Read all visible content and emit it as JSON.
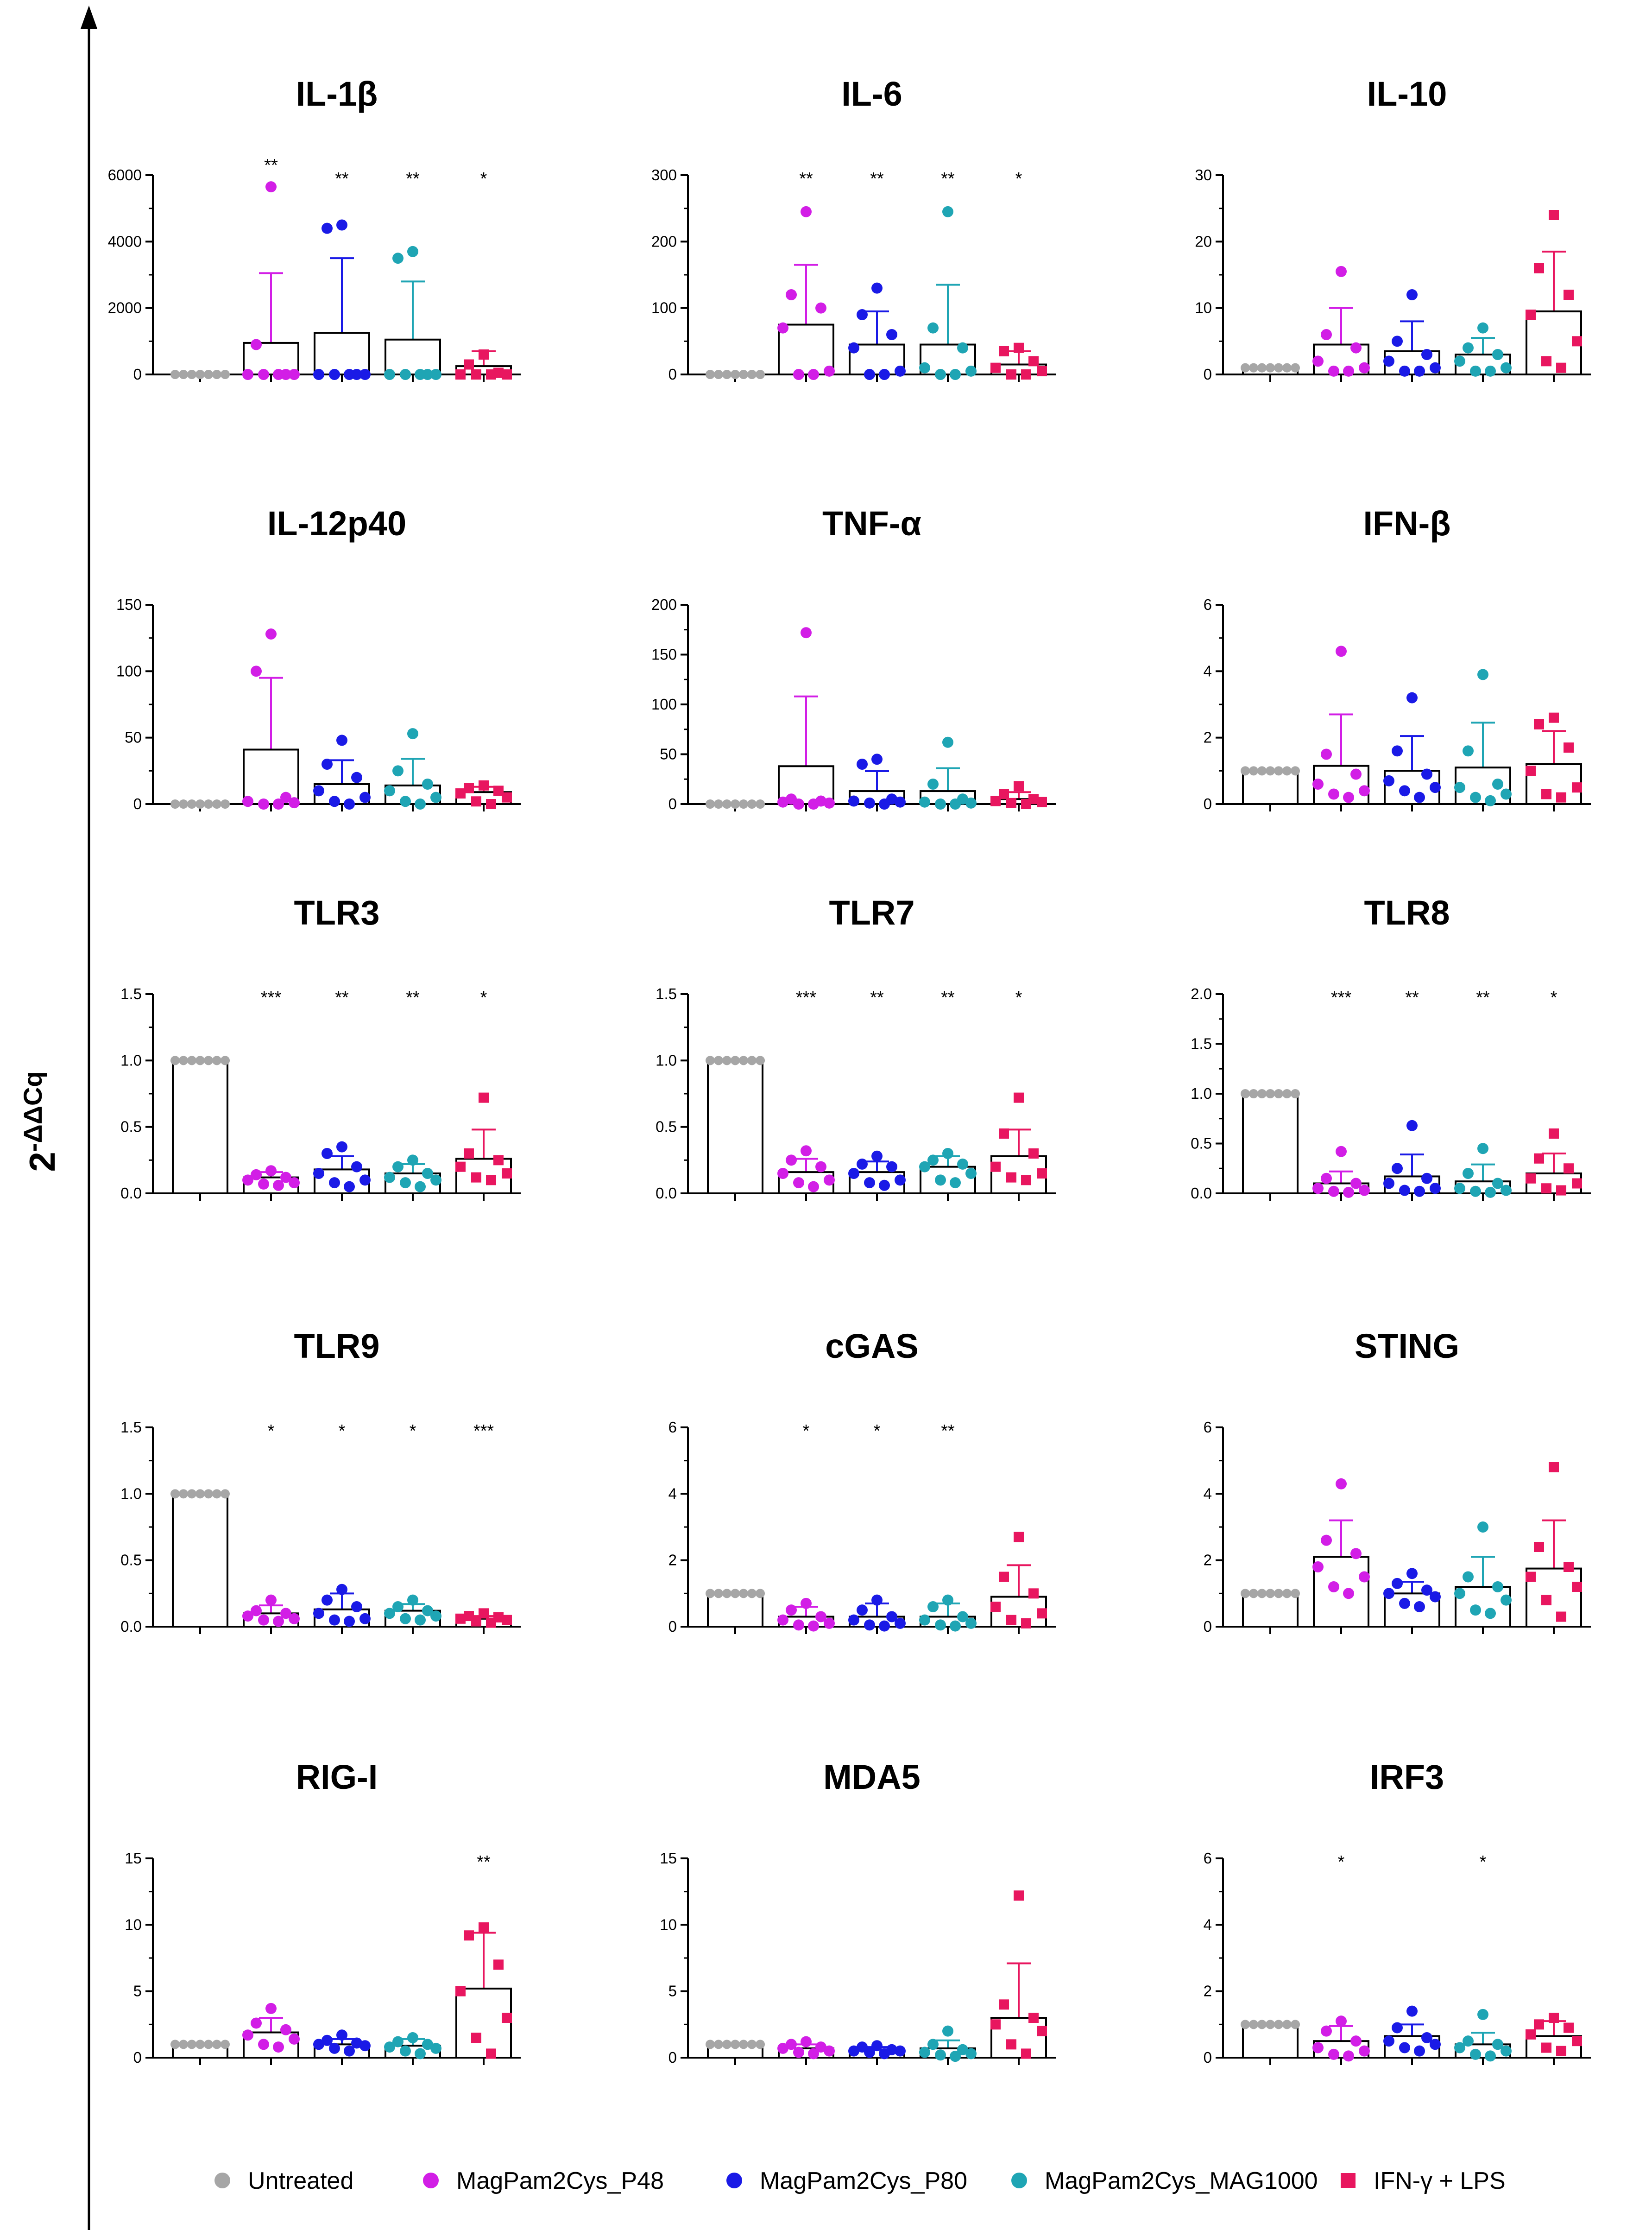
{
  "y_axis_label": {
    "base": "2",
    "exponent": "-ΔΔCq"
  },
  "colors": {
    "Untreated": "#a6a6a6",
    "MagPam2Cys_P48": "#d21ee6",
    "MagPam2Cys_P80": "#1a1ae6",
    "MagPam2Cys_MAG1000": "#1fa5b4",
    "IFN-γ + LPS": "#e8165f"
  },
  "legend": [
    {
      "label": "Untreated",
      "color": "#a6a6a6",
      "marker": "circle"
    },
    {
      "label": "MagPam2Cys_P48",
      "color": "#d21ee6",
      "marker": "circle"
    },
    {
      "label": "MagPam2Cys_P80",
      "color": "#1a1ae6",
      "marker": "circle"
    },
    {
      "label": "MagPam2Cys_MAG1000",
      "color": "#1fa5b4",
      "marker": "circle"
    },
    {
      "label": "IFN-γ + LPS",
      "color": "#e8165f",
      "marker": "square"
    }
  ],
  "chart_data": [
    {
      "type": "bar",
      "title": "IL-1β",
      "ylim": [
        0,
        6000
      ],
      "yticks": [
        "0",
        "2000",
        "4000",
        "6000"
      ],
      "categories": [
        "Untreated",
        "MagPam2Cys_P48",
        "MagPam2Cys_P80",
        "MagPam2Cys_MAG1000",
        "IFN-γ + LPS"
      ],
      "means": [
        0,
        950,
        1250,
        1050,
        250
      ],
      "sd": [
        0,
        2100,
        2250,
        1750,
        450
      ],
      "points": [
        [
          0,
          0,
          0,
          0,
          0,
          0,
          0
        ],
        [
          5650,
          900,
          0,
          0,
          0,
          0,
          0
        ],
        [
          4500,
          4400,
          0,
          0,
          0,
          0,
          0
        ],
        [
          3700,
          3500,
          0,
          0,
          0,
          0,
          0
        ],
        [
          600,
          300,
          50,
          0,
          0,
          0,
          0
        ]
      ],
      "significance": [
        "",
        "**",
        "**",
        "**",
        "*"
      ]
    },
    {
      "type": "bar",
      "title": "IL-6",
      "ylim": [
        0,
        300
      ],
      "yticks": [
        "0",
        "100",
        "200",
        "300"
      ],
      "categories": [
        "Untreated",
        "MagPam2Cys_P48",
        "MagPam2Cys_P80",
        "MagPam2Cys_MAG1000",
        "IFN-γ + LPS"
      ],
      "means": [
        0,
        75,
        45,
        45,
        15
      ],
      "sd": [
        0,
        90,
        50,
        90,
        20
      ],
      "points": [
        [
          0,
          0,
          0,
          0,
          0,
          0,
          0
        ],
        [
          245,
          120,
          100,
          70,
          5,
          0,
          0
        ],
        [
          130,
          90,
          60,
          40,
          5,
          0,
          0
        ],
        [
          245,
          70,
          40,
          10,
          5,
          0,
          0
        ],
        [
          40,
          35,
          20,
          10,
          5,
          0,
          0
        ]
      ],
      "significance": [
        "",
        "**",
        "**",
        "**",
        "*"
      ]
    },
    {
      "type": "bar",
      "title": "IL-10",
      "ylim": [
        0,
        30
      ],
      "yticks": [
        "0",
        "10",
        "20",
        "30"
      ],
      "categories": [
        "Untreated",
        "MagPam2Cys_P48",
        "MagPam2Cys_P80",
        "MagPam2Cys_MAG1000",
        "IFN-γ + LPS"
      ],
      "means": [
        1,
        4.5,
        3.5,
        3,
        9.5
      ],
      "sd": [
        0,
        5.5,
        4.5,
        2.5,
        9
      ],
      "points": [
        [
          1,
          1,
          1,
          1,
          1,
          1,
          1
        ],
        [
          15.5,
          6,
          4,
          2,
          1,
          0.5,
          0.5
        ],
        [
          12,
          5,
          3,
          2,
          1,
          0.5,
          0.5
        ],
        [
          7,
          4,
          3,
          2,
          1,
          0.5,
          0.5
        ],
        [
          24,
          16,
          12,
          9,
          5,
          2,
          1
        ]
      ],
      "significance": [
        "",
        "",
        "",
        "",
        ""
      ]
    },
    {
      "type": "bar",
      "title": "IL-12p40",
      "ylim": [
        0,
        150
      ],
      "yticks": [
        "0",
        "50",
        "100",
        "150"
      ],
      "categories": [
        "Untreated",
        "MagPam2Cys_P48",
        "MagPam2Cys_P80",
        "MagPam2Cys_MAG1000",
        "IFN-γ + LPS"
      ],
      "means": [
        0,
        41,
        15,
        14,
        9
      ],
      "sd": [
        0,
        54,
        18,
        20,
        4
      ],
      "points": [
        [
          0,
          0,
          0,
          0,
          0,
          0,
          0
        ],
        [
          128,
          100,
          5,
          2,
          1,
          0,
          0
        ],
        [
          48,
          30,
          20,
          10,
          5,
          2,
          0
        ],
        [
          53,
          25,
          15,
          10,
          5,
          2,
          0
        ],
        [
          14,
          12,
          10,
          8,
          5,
          2,
          0
        ]
      ],
      "significance": [
        "",
        "",
        "",
        "",
        ""
      ]
    },
    {
      "type": "bar",
      "title": "TNF-α",
      "ylim": [
        0,
        200
      ],
      "yticks": [
        "0",
        "50",
        "100",
        "150",
        "200"
      ],
      "categories": [
        "Untreated",
        "MagPam2Cys_P48",
        "MagPam2Cys_P80",
        "MagPam2Cys_MAG1000",
        "IFN-γ + LPS"
      ],
      "means": [
        0,
        38,
        13,
        13,
        5
      ],
      "sd": [
        0,
        70,
        20,
        23,
        7
      ],
      "points": [
        [
          0,
          0,
          0,
          0,
          0,
          0,
          0
        ],
        [
          172,
          5,
          3,
          2,
          1,
          0,
          0
        ],
        [
          45,
          40,
          5,
          3,
          2,
          1,
          0
        ],
        [
          62,
          20,
          5,
          2,
          1,
          0,
          0
        ],
        [
          18,
          10,
          5,
          3,
          2,
          1,
          0
        ]
      ],
      "significance": [
        "",
        "",
        "",
        "",
        ""
      ]
    },
    {
      "type": "bar",
      "title": "IFN-β",
      "ylim": [
        0,
        6
      ],
      "yticks": [
        "0",
        "2",
        "4",
        "6"
      ],
      "categories": [
        "Untreated",
        "MagPam2Cys_P48",
        "MagPam2Cys_P80",
        "MagPam2Cys_MAG1000",
        "IFN-γ + LPS"
      ],
      "means": [
        1,
        1.15,
        1.0,
        1.1,
        1.2
      ],
      "sd": [
        0,
        1.55,
        1.05,
        1.35,
        1.0
      ],
      "points": [
        [
          1,
          1,
          1,
          1,
          1,
          1,
          1
        ],
        [
          4.6,
          1.5,
          0.9,
          0.6,
          0.4,
          0.3,
          0.2
        ],
        [
          3.2,
          1.6,
          0.9,
          0.7,
          0.5,
          0.4,
          0.2
        ],
        [
          3.9,
          1.6,
          0.6,
          0.5,
          0.3,
          0.2,
          0.1
        ],
        [
          2.6,
          2.4,
          1.7,
          1.0,
          0.5,
          0.3,
          0.2
        ]
      ],
      "significance": [
        "",
        "",
        "",
        "",
        ""
      ]
    },
    {
      "type": "bar",
      "title": "TLR3",
      "ylim": [
        0,
        1.5
      ],
      "yticks": [
        "0.0",
        "0.5",
        "1.0",
        "1.5"
      ],
      "categories": [
        "Untreated",
        "MagPam2Cys_P48",
        "MagPam2Cys_P80",
        "MagPam2Cys_MAG1000",
        "IFN-γ + LPS"
      ],
      "means": [
        1.0,
        0.12,
        0.18,
        0.15,
        0.26
      ],
      "sd": [
        0,
        0.04,
        0.1,
        0.07,
        0.22
      ],
      "points": [
        [
          1,
          1,
          1,
          1,
          1,
          1,
          1
        ],
        [
          0.17,
          0.14,
          0.12,
          0.1,
          0.08,
          0.07,
          0.06
        ],
        [
          0.35,
          0.3,
          0.2,
          0.15,
          0.1,
          0.08,
          0.05
        ],
        [
          0.25,
          0.2,
          0.15,
          0.12,
          0.1,
          0.08,
          0.05
        ],
        [
          0.72,
          0.3,
          0.25,
          0.2,
          0.15,
          0.12,
          0.1
        ]
      ],
      "significance": [
        "",
        "***",
        "**",
        "**",
        "*"
      ]
    },
    {
      "type": "bar",
      "title": "TLR7",
      "ylim": [
        0,
        1.5
      ],
      "yticks": [
        "0.0",
        "0.5",
        "1.0",
        "1.5"
      ],
      "categories": [
        "Untreated",
        "MagPam2Cys_P48",
        "MagPam2Cys_P80",
        "MagPam2Cys_MAG1000",
        "IFN-γ + LPS"
      ],
      "means": [
        1.0,
        0.16,
        0.16,
        0.2,
        0.28
      ],
      "sd": [
        0,
        0.1,
        0.08,
        0.08,
        0.2
      ],
      "points": [
        [
          1,
          1,
          1,
          1,
          1,
          1,
          1
        ],
        [
          0.32,
          0.25,
          0.2,
          0.15,
          0.1,
          0.08,
          0.05
        ],
        [
          0.28,
          0.22,
          0.2,
          0.15,
          0.1,
          0.08,
          0.06
        ],
        [
          0.3,
          0.25,
          0.22,
          0.2,
          0.15,
          0.1,
          0.08
        ],
        [
          0.72,
          0.45,
          0.3,
          0.2,
          0.15,
          0.12,
          0.1
        ]
      ],
      "significance": [
        "",
        "***",
        "**",
        "**",
        "*"
      ]
    },
    {
      "type": "bar",
      "title": "TLR8",
      "ylim": [
        0,
        2.0
      ],
      "yticks": [
        "0.0",
        "0.5",
        "1.0",
        "1.5",
        "2.0"
      ],
      "categories": [
        "Untreated",
        "MagPam2Cys_P48",
        "MagPam2Cys_P80",
        "MagPam2Cys_MAG1000",
        "IFN-γ + LPS"
      ],
      "means": [
        1.0,
        0.1,
        0.17,
        0.12,
        0.2
      ],
      "sd": [
        0,
        0.12,
        0.22,
        0.17,
        0.2
      ],
      "points": [
        [
          1,
          1,
          1,
          1,
          1,
          1,
          1
        ],
        [
          0.42,
          0.15,
          0.1,
          0.05,
          0.03,
          0.02,
          0.01
        ],
        [
          0.68,
          0.25,
          0.15,
          0.1,
          0.05,
          0.03,
          0.02
        ],
        [
          0.45,
          0.2,
          0.1,
          0.05,
          0.03,
          0.02,
          0.01
        ],
        [
          0.6,
          0.35,
          0.25,
          0.15,
          0.1,
          0.05,
          0.03
        ]
      ],
      "significance": [
        "",
        "***",
        "**",
        "**",
        "*"
      ]
    },
    {
      "type": "bar",
      "title": "TLR9",
      "ylim": [
        0,
        1.5
      ],
      "yticks": [
        "0.0",
        "0.5",
        "1.0",
        "1.5"
      ],
      "categories": [
        "Untreated",
        "MagPam2Cys_P48",
        "MagPam2Cys_P80",
        "MagPam2Cys_MAG1000",
        "IFN-γ + LPS"
      ],
      "means": [
        1.0,
        0.1,
        0.13,
        0.12,
        0.06
      ],
      "sd": [
        0,
        0.06,
        0.12,
        0.05,
        0.02
      ],
      "points": [
        [
          1,
          1,
          1,
          1,
          1,
          1,
          1
        ],
        [
          0.2,
          0.12,
          0.1,
          0.08,
          0.06,
          0.05,
          0.04
        ],
        [
          0.28,
          0.2,
          0.15,
          0.1,
          0.06,
          0.05,
          0.04
        ],
        [
          0.2,
          0.15,
          0.12,
          0.1,
          0.08,
          0.06,
          0.05
        ],
        [
          0.1,
          0.08,
          0.07,
          0.06,
          0.05,
          0.04,
          0.03
        ]
      ],
      "significance": [
        "",
        "*",
        "*",
        "*",
        "***"
      ]
    },
    {
      "type": "bar",
      "title": "cGAS",
      "ylim": [
        0,
        6
      ],
      "yticks": [
        "0",
        "2",
        "4",
        "6"
      ],
      "categories": [
        "Untreated",
        "MagPam2Cys_P48",
        "MagPam2Cys_P80",
        "MagPam2Cys_MAG1000",
        "IFN-γ + LPS"
      ],
      "means": [
        1,
        0.3,
        0.3,
        0.3,
        0.9
      ],
      "sd": [
        0,
        0.3,
        0.4,
        0.4,
        0.95
      ],
      "points": [
        [
          1,
          1,
          1,
          1,
          1,
          1,
          1
        ],
        [
          0.7,
          0.5,
          0.3,
          0.2,
          0.1,
          0.05,
          0.02
        ],
        [
          0.8,
          0.5,
          0.3,
          0.2,
          0.1,
          0.05,
          0.02
        ],
        [
          0.8,
          0.6,
          0.3,
          0.2,
          0.1,
          0.05,
          0.02
        ],
        [
          2.7,
          1.5,
          1.0,
          0.6,
          0.4,
          0.2,
          0.1
        ]
      ],
      "significance": [
        "",
        "*",
        "*",
        "**",
        ""
      ]
    },
    {
      "type": "bar",
      "title": "STING",
      "ylim": [
        0,
        6
      ],
      "yticks": [
        "0",
        "2",
        "4",
        "6"
      ],
      "categories": [
        "Untreated",
        "MagPam2Cys_P48",
        "MagPam2Cys_P80",
        "MagPam2Cys_MAG1000",
        "IFN-γ + LPS"
      ],
      "means": [
        1,
        2.1,
        1.0,
        1.2,
        1.75
      ],
      "sd": [
        0,
        1.1,
        0.35,
        0.9,
        1.45
      ],
      "points": [
        [
          1,
          1,
          1,
          1,
          1,
          1,
          1
        ],
        [
          4.3,
          2.6,
          2.2,
          1.8,
          1.5,
          1.2,
          1.0
        ],
        [
          1.6,
          1.3,
          1.1,
          1.0,
          0.9,
          0.7,
          0.6
        ],
        [
          3.0,
          1.5,
          1.2,
          1.0,
          0.8,
          0.5,
          0.4
        ],
        [
          4.8,
          2.4,
          1.8,
          1.5,
          1.2,
          0.8,
          0.3
        ]
      ],
      "significance": [
        "",
        "",
        "",
        "",
        ""
      ]
    },
    {
      "type": "bar",
      "title": "RIG-I",
      "ylim": [
        0,
        15
      ],
      "yticks": [
        "0",
        "5",
        "10",
        "15"
      ],
      "categories": [
        "Untreated",
        "MagPam2Cys_P48",
        "MagPam2Cys_P80",
        "MagPam2Cys_MAG1000",
        "IFN-γ + LPS"
      ],
      "means": [
        1,
        1.9,
        1.0,
        0.9,
        5.2
      ],
      "sd": [
        0,
        1.1,
        0.4,
        0.5,
        4.2
      ],
      "points": [
        [
          1,
          1,
          1,
          1,
          1,
          1,
          1
        ],
        [
          3.7,
          2.6,
          2.1,
          1.7,
          1.4,
          1.0,
          0.8
        ],
        [
          1.7,
          1.3,
          1.1,
          1.0,
          0.9,
          0.7,
          0.5
        ],
        [
          1.5,
          1.2,
          1.0,
          0.8,
          0.7,
          0.5,
          0.3
        ],
        [
          9.8,
          9.2,
          7.0,
          5.0,
          3.0,
          1.5,
          0.3
        ]
      ],
      "significance": [
        "",
        "",
        "",
        "",
        "**"
      ]
    },
    {
      "type": "bar",
      "title": "MDA5",
      "ylim": [
        0,
        15
      ],
      "yticks": [
        "0",
        "5",
        "10",
        "15"
      ],
      "categories": [
        "Untreated",
        "MagPam2Cys_P48",
        "MagPam2Cys_P80",
        "MagPam2Cys_MAG1000",
        "IFN-γ + LPS"
      ],
      "means": [
        1,
        0.7,
        0.6,
        0.7,
        3.0
      ],
      "sd": [
        0,
        0.3,
        0.2,
        0.6,
        4.1
      ],
      "points": [
        [
          1,
          1,
          1,
          1,
          1,
          1,
          1
        ],
        [
          1.2,
          1.0,
          0.8,
          0.7,
          0.5,
          0.4,
          0.3
        ],
        [
          0.9,
          0.8,
          0.6,
          0.5,
          0.5,
          0.4,
          0.3
        ],
        [
          2.0,
          1.0,
          0.6,
          0.4,
          0.3,
          0.2,
          0.1
        ],
        [
          12.2,
          4.0,
          3.0,
          2.5,
          2.0,
          1.0,
          0.3
        ]
      ],
      "significance": [
        "",
        "",
        "",
        "",
        ""
      ]
    },
    {
      "type": "bar",
      "title": "IRF3",
      "ylim": [
        0,
        6
      ],
      "yticks": [
        "0",
        "2",
        "4",
        "6"
      ],
      "categories": [
        "Untreated",
        "MagPam2Cys_P48",
        "MagPam2Cys_P80",
        "MagPam2Cys_MAG1000",
        "IFN-γ + LPS"
      ],
      "means": [
        1,
        0.5,
        0.65,
        0.4,
        0.65
      ],
      "sd": [
        0,
        0.45,
        0.35,
        0.35,
        0.45
      ],
      "points": [
        [
          1,
          1,
          1,
          1,
          1,
          1,
          1
        ],
        [
          1.1,
          0.8,
          0.5,
          0.3,
          0.2,
          0.1,
          0.05
        ],
        [
          1.4,
          0.9,
          0.6,
          0.5,
          0.4,
          0.3,
          0.2
        ],
        [
          1.3,
          0.5,
          0.4,
          0.3,
          0.2,
          0.1,
          0.05
        ],
        [
          1.2,
          1.0,
          0.9,
          0.7,
          0.5,
          0.3,
          0.2
        ]
      ],
      "significance": [
        "",
        "*",
        "",
        "*",
        ""
      ]
    }
  ]
}
